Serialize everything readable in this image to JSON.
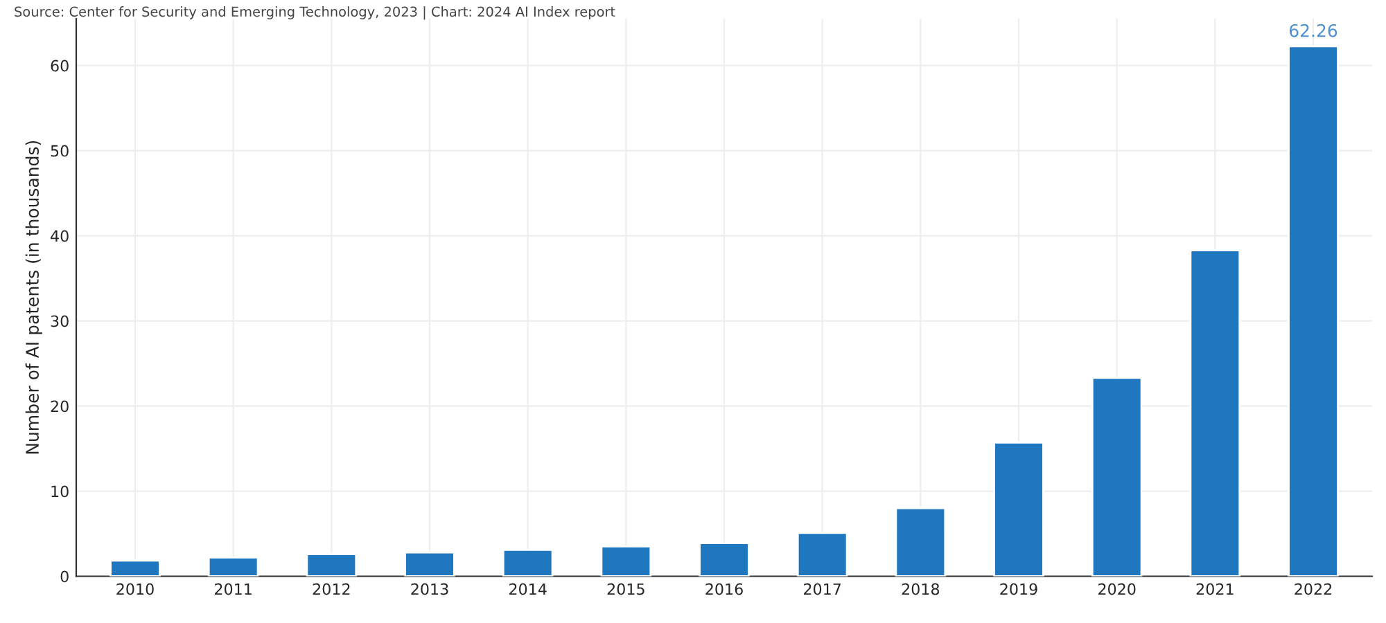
{
  "chart_data": {
    "type": "bar",
    "annotations": [
      "Source: Center for Security and Emerging Technology, 2023 | Chart: 2024 AI Index report"
    ],
    "ylabel": "Number of AI patents (in thousands)",
    "categories": [
      "2010",
      "2011",
      "2012",
      "2013",
      "2014",
      "2015",
      "2016",
      "2017",
      "2018",
      "2019",
      "2020",
      "2021",
      "2022"
    ],
    "values": [
      1.85,
      2.2,
      2.6,
      2.8,
      3.1,
      3.5,
      3.9,
      5.1,
      8.0,
      15.7,
      23.3,
      38.3,
      62.26
    ],
    "value_labels": [
      null,
      null,
      null,
      null,
      null,
      null,
      null,
      null,
      null,
      null,
      null,
      null,
      "62.26"
    ],
    "color": "#1f77c0",
    "ylim": [
      0,
      65.5
    ],
    "yticks": [
      0,
      10,
      20,
      30,
      40,
      50,
      60
    ],
    "grid": true
  }
}
